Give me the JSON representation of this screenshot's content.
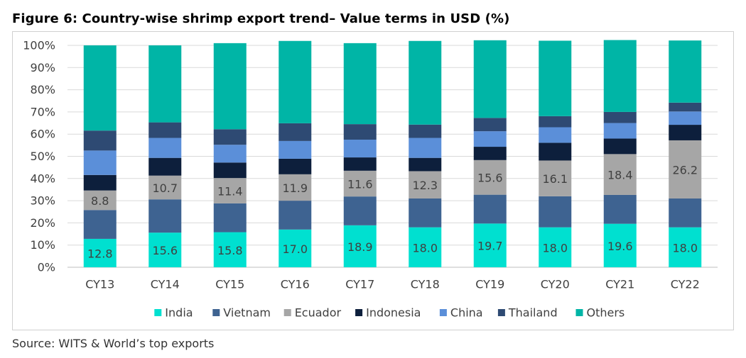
{
  "title": "Figure 6: Country-wise shrimp export trend– Value terms in USD (%)",
  "source": "Source: WITS & World’s top exports",
  "chart_data": {
    "type": "bar",
    "stacked": true,
    "title": "Figure 6: Country-wise shrimp export trend– Value terms in USD (%)",
    "xlabel": "",
    "ylabel": "",
    "ylim": [
      0,
      100
    ],
    "y_ticks": [
      "0%",
      "10%",
      "20%",
      "30%",
      "40%",
      "50%",
      "60%",
      "70%",
      "80%",
      "90%",
      "100%"
    ],
    "categories": [
      "CY13",
      "CY14",
      "CY15",
      "CY16",
      "CY17",
      "CY18",
      "CY19",
      "CY20",
      "CY21",
      "CY22"
    ],
    "legend_position": "bottom",
    "series": [
      {
        "name": "India",
        "color": "#00e0d0",
        "labeled": true,
        "values": [
          12.8,
          15.6,
          15.8,
          17.0,
          18.9,
          18.0,
          19.7,
          18.0,
          19.6,
          18.0
        ],
        "labels": [
          "12.8",
          "15.6",
          "15.8",
          "17.0",
          "18.9",
          "18.0",
          "19.7",
          "18.0",
          "19.6",
          "18.0"
        ]
      },
      {
        "name": "Vietnam",
        "color": "#3e6391",
        "labeled": false,
        "values": [
          13.0,
          15.0,
          13.0,
          13.0,
          13.0,
          13.0,
          13.0,
          14.0,
          13.0,
          13.0
        ]
      },
      {
        "name": "Ecuador",
        "color": "#a6a6a6",
        "labeled": true,
        "values": [
          8.8,
          10.7,
          11.4,
          11.9,
          11.6,
          12.3,
          15.6,
          16.1,
          18.4,
          26.2
        ],
        "labels": [
          "8.8",
          "10.7",
          "11.4",
          "11.9",
          "11.6",
          "12.3",
          "15.6",
          "16.1",
          "18.4",
          "26.2"
        ]
      },
      {
        "name": "Indonesia",
        "color": "#0d1f3c",
        "labeled": false,
        "values": [
          7.0,
          8.0,
          7.0,
          7.0,
          6.0,
          6.0,
          6.0,
          8.0,
          7.0,
          7.0
        ]
      },
      {
        "name": "China",
        "color": "#5b8fd9",
        "labeled": false,
        "values": [
          11.0,
          9.0,
          8.0,
          8.0,
          8.0,
          9.0,
          7.0,
          7.0,
          7.0,
          6.0
        ]
      },
      {
        "name": "Thailand",
        "color": "#2e4a73",
        "labeled": false,
        "values": [
          9.0,
          7.0,
          7.0,
          8.0,
          7.0,
          6.0,
          6.0,
          5.0,
          5.0,
          4.0
        ]
      },
      {
        "name": "Others",
        "color": "#00b5a6",
        "labeled": false,
        "values": [
          38.4,
          34.7,
          38.8,
          37.1,
          36.5,
          37.7,
          35.0,
          34.0,
          32.4,
          28.0
        ]
      }
    ]
  }
}
